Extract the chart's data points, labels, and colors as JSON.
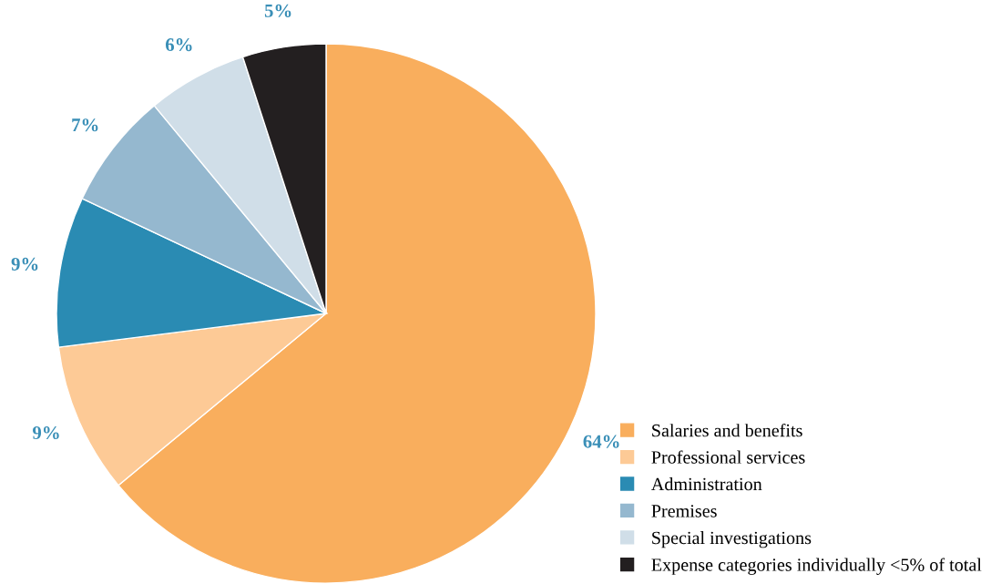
{
  "chart_data": {
    "type": "pie",
    "categories": [
      "Salaries and benefits",
      "Professional services",
      "Administration",
      "Premises",
      "Special investigations",
      "Expense categories individually <5% of total"
    ],
    "values": [
      64,
      9,
      9,
      7,
      6,
      5
    ],
    "value_labels": [
      "64%",
      "9%",
      "9%",
      "7%",
      "6%",
      "5%"
    ],
    "colors": [
      "#f9ae5d",
      "#fdca96",
      "#2a8bb3",
      "#95b8cf",
      "#d0dee8",
      "#231f20"
    ],
    "legend": "bottom right"
  }
}
